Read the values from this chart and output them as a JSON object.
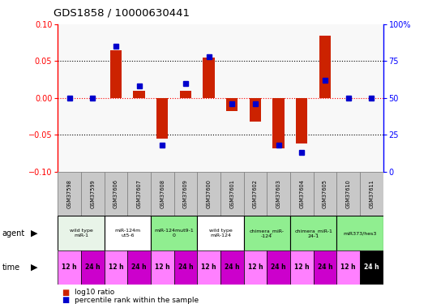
{
  "title": "GDS1858 / 10000630441",
  "samples": [
    "GSM37598",
    "GSM37599",
    "GSM37606",
    "GSM37607",
    "GSM37608",
    "GSM37609",
    "GSM37600",
    "GSM37601",
    "GSM37602",
    "GSM37603",
    "GSM37604",
    "GSM37605",
    "GSM37610",
    "GSM37611"
  ],
  "log10_ratio": [
    0.0,
    0.0,
    0.065,
    0.01,
    -0.055,
    0.01,
    0.055,
    -0.018,
    -0.032,
    -0.068,
    -0.062,
    0.085,
    0.0,
    0.0
  ],
  "percentile_rank": [
    50,
    50,
    85,
    58,
    18,
    60,
    78,
    46,
    46,
    18,
    13,
    62,
    50,
    50
  ],
  "agent_groups": [
    {
      "label": "wild type\nmiR-1",
      "cols": [
        0,
        1
      ],
      "color": "#e8f4e8"
    },
    {
      "label": "miR-124m\nut5-6",
      "cols": [
        2,
        3
      ],
      "color": "#ffffff"
    },
    {
      "label": "miR-124mut9-1\n0",
      "cols": [
        4,
        5
      ],
      "color": "#90ee90"
    },
    {
      "label": "wild type\nmiR-124",
      "cols": [
        6,
        7
      ],
      "color": "#ffffff"
    },
    {
      "label": "chimera_miR-\n-124",
      "cols": [
        8,
        9
      ],
      "color": "#90ee90"
    },
    {
      "label": "chimera_miR-1\n24-1",
      "cols": [
        10,
        11
      ],
      "color": "#90ee90"
    },
    {
      "label": "miR373/hes3",
      "cols": [
        12,
        13
      ],
      "color": "#90ee90"
    }
  ],
  "time_labels": [
    "12 h",
    "24 h",
    "12 h",
    "24 h",
    "12 h",
    "24 h",
    "12 h",
    "24 h",
    "12 h",
    "24 h",
    "12 h",
    "24 h",
    "12 h",
    "24 h"
  ],
  "time_color_light": "#ff80ff",
  "time_color_dark": "#cc00cc",
  "time_color_black": "#000000",
  "time_is_dark": [
    false,
    true,
    false,
    true,
    false,
    true,
    false,
    true,
    false,
    true,
    false,
    true,
    false,
    false
  ],
  "time_last_black": true,
  "ylim_left": [
    -0.1,
    0.1
  ],
  "ylim_right": [
    0,
    100
  ],
  "yticks_left": [
    -0.1,
    -0.05,
    0.0,
    0.05,
    0.1
  ],
  "yticks_right": [
    0,
    25,
    50,
    75,
    100
  ],
  "hlines": [
    -0.05,
    0.0,
    0.05
  ],
  "bar_color": "#cc2200",
  "dot_color": "#0000cc",
  "plot_bg": "#f8f8f8",
  "sample_bg": "#c8c8c8",
  "fig_width": 5.28,
  "fig_height": 3.75
}
